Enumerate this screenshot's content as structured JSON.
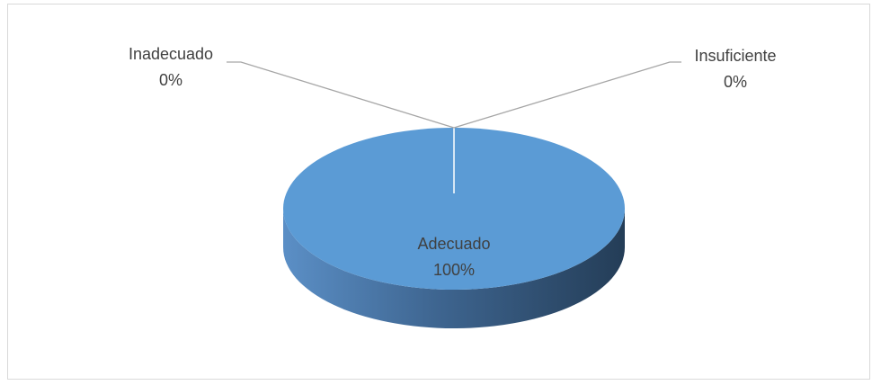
{
  "chart_data": {
    "type": "pie",
    "title": "",
    "categories": [
      "Adecuado",
      "Inadecuado",
      "Insuficiente"
    ],
    "values": [
      100,
      0,
      0
    ],
    "labels": [
      {
        "name": "Adecuado",
        "percent": "100%"
      },
      {
        "name": "Inadecuado",
        "percent": "0%"
      },
      {
        "name": "Insuficiente",
        "percent": "0%"
      }
    ],
    "colors": {
      "top": "#5b9bd5",
      "side_light": "#5b8fc6",
      "side_dark": "#243d57",
      "leader": "#a6a6a6",
      "label_text": "#404040",
      "border": "#d9d9d9"
    },
    "legend": "none",
    "style": "3d-pie"
  }
}
